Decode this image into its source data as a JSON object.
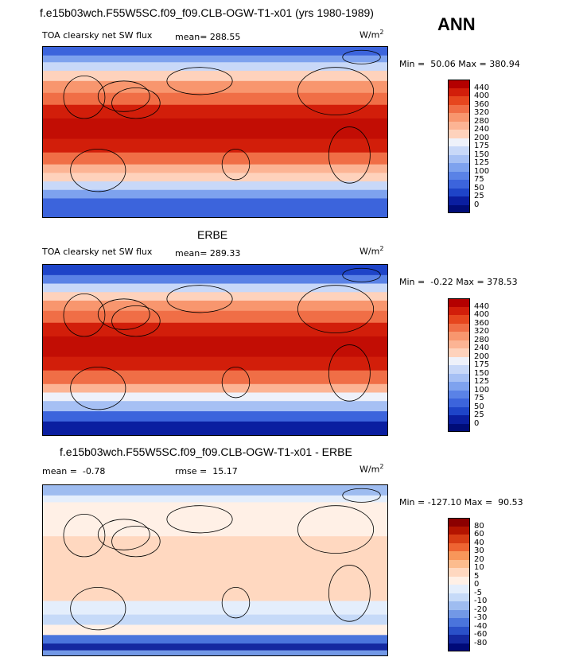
{
  "season": "ANN",
  "colors": {
    "abs_scale": [
      "#b40000",
      "#d21e0a",
      "#e6461e",
      "#f06e46",
      "#f8966e",
      "#fcb494",
      "#fed2bc",
      "#eef1fa",
      "#c8d8f8",
      "#a6c0f4",
      "#7ea2ee",
      "#5a82e6",
      "#3c64dc",
      "#1e44c8",
      "#0a1ea0",
      "#000c78"
    ],
    "diff_scale": [
      "#8c0000",
      "#b41400",
      "#d73c14",
      "#ee6432",
      "#f8965a",
      "#fcbc8e",
      "#ffd8c0",
      "#fff0e6",
      "#e4eefc",
      "#c6daf8",
      "#9ebcf0",
      "#7298e6",
      "#4a74dc",
      "#2a50c8",
      "#1428a0",
      "#000a78"
    ]
  },
  "chart_data": [
    {
      "type": "heatmap",
      "title": "f.e15b03wch.F55W5SC.f09_f09.CLB-OGW-T1-x01 (yrs 1980-1989)",
      "variable": "TOA clearsky net SW flux",
      "mean_label": "mean=",
      "mean": "288.55",
      "units": "W/m",
      "units_exp": "2",
      "min_label": "Min =",
      "min": "50.06",
      "max_label": "Max =",
      "max": "380.94",
      "colorbar_levels": [
        "440",
        "400",
        "360",
        "320",
        "280",
        "240",
        "200",
        "175",
        "150",
        "125",
        "100",
        "75",
        "50",
        "25",
        "0"
      ]
    },
    {
      "type": "heatmap",
      "title": "ERBE",
      "variable": "TOA clearsky net SW flux",
      "mean_label": "mean=",
      "mean": "289.33",
      "units": "W/m",
      "units_exp": "2",
      "min_label": "Min =",
      "min": "-0.22",
      "max_label": "Max =",
      "max": "378.53",
      "colorbar_levels": [
        "440",
        "400",
        "360",
        "320",
        "280",
        "240",
        "200",
        "175",
        "150",
        "125",
        "100",
        "75",
        "50",
        "25",
        "0"
      ]
    },
    {
      "type": "heatmap",
      "title": "f.e15b03wch.F55W5SC.f09_f09.CLB-OGW-T1-x01 - ERBE",
      "mean_label": "mean =",
      "mean": "-0.78",
      "rmse_label": "rmse =",
      "rmse": "15.17",
      "units": "W/m",
      "units_exp": "2",
      "min_label": "Min =",
      "min": "-127.10",
      "max_label": "Max =",
      "max": "90.53",
      "colorbar_levels": [
        "80",
        "60",
        "40",
        "30",
        "20",
        "10",
        "5",
        "0",
        "-5",
        "-10",
        "-20",
        "-30",
        "-40",
        "-60",
        "-80"
      ]
    }
  ]
}
